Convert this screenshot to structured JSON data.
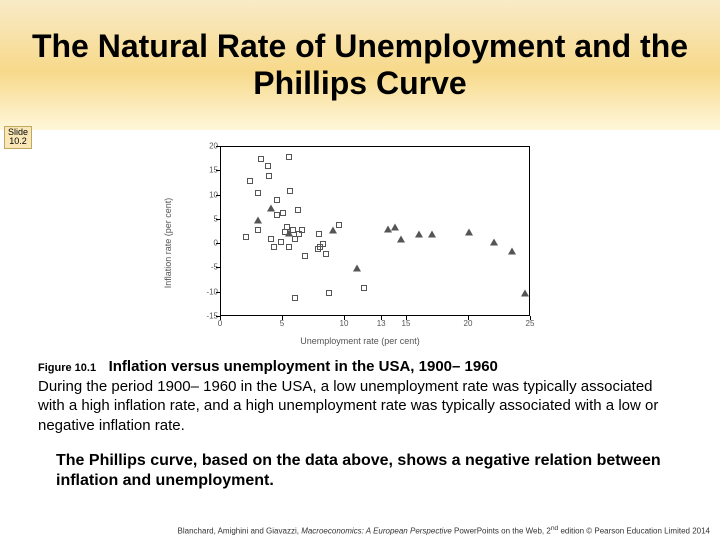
{
  "slide": {
    "title": "The Natural Rate of Unemployment and the Phillips Curve",
    "badge_line1": "Slide",
    "badge_line2": "10.2"
  },
  "chart": {
    "type": "scatter",
    "xlabel": "Unemployment rate (per cent)",
    "ylabel": "Inflation rate (per cent)",
    "xlim": [
      0,
      25
    ],
    "ylim": [
      -15,
      20
    ],
    "xticks": [
      0,
      5,
      10,
      13,
      15,
      20,
      25
    ],
    "yticks": [
      -15,
      -10,
      -5,
      0,
      5,
      10,
      15,
      20
    ],
    "colors": {
      "axis": "#000000",
      "tick_text": "#555555",
      "marker_stroke": "#555555",
      "background": "#ffffff"
    },
    "series": [
      {
        "marker": "square",
        "points": [
          [
            2.0,
            1.5
          ],
          [
            2.3,
            13.0
          ],
          [
            3.0,
            3.0
          ],
          [
            3.0,
            10.5
          ],
          [
            3.2,
            17.5
          ],
          [
            3.8,
            16.0
          ],
          [
            3.9,
            14.0
          ],
          [
            4.0,
            1.0
          ],
          [
            4.3,
            -0.5
          ],
          [
            4.5,
            6.0
          ],
          [
            4.5,
            9.0
          ],
          [
            4.8,
            0.5
          ],
          [
            5.0,
            6.5
          ],
          [
            5.2,
            2.5
          ],
          [
            5.3,
            3.5
          ],
          [
            5.5,
            18.0
          ],
          [
            5.5,
            -0.5
          ],
          [
            5.6,
            11.0
          ],
          [
            5.8,
            3.0
          ],
          [
            6.0,
            1.0
          ],
          [
            6.0,
            -11.0
          ],
          [
            6.2,
            7.0
          ],
          [
            6.3,
            2.0
          ],
          [
            6.5,
            3.0
          ],
          [
            6.8,
            -2.5
          ],
          [
            7.8,
            -1.0
          ],
          [
            7.9,
            2.0
          ],
          [
            8.0,
            -0.5
          ],
          [
            8.2,
            0.0
          ],
          [
            8.5,
            -2.0
          ],
          [
            8.7,
            -10.0
          ],
          [
            9.5,
            4.0
          ],
          [
            11.5,
            -9.0
          ]
        ]
      },
      {
        "marker": "triangle",
        "points": [
          [
            3.0,
            5.0
          ],
          [
            4.0,
            7.5
          ],
          [
            5.5,
            2.2
          ],
          [
            9.0,
            3.0
          ],
          [
            11.0,
            -5.0
          ],
          [
            13.5,
            3.2
          ],
          [
            14.0,
            3.5
          ],
          [
            14.5,
            1.0
          ],
          [
            16.0,
            2.0
          ],
          [
            17.0,
            2.0
          ],
          [
            20.0,
            2.5
          ],
          [
            22.0,
            0.5
          ],
          [
            23.5,
            -1.5
          ],
          [
            24.5,
            -10.0
          ]
        ]
      }
    ]
  },
  "figure_caption": {
    "label": "Figure 10.1",
    "title": "Inflation versus unemployment in the USA, 1900– 1960",
    "paragraph": "During the period 1900– 1960 in the USA, a low unemployment rate was typically associated with a high inflation rate, and a high unemployment rate was typically associated with a low or negative inflation rate."
  },
  "bold_paragraph": "The Phillips curve, based on the data above, shows a negative relation between inflation and unemployment.",
  "footer": {
    "authors": "Blanchard, Amighini and Giavazzi,",
    "book_title": "Macroeconomics: A European Perspective",
    "rest": "PowerPoints on the Web, 2",
    "super": "nd",
    "tail": " edition © Pearson Education Limited 2014"
  }
}
